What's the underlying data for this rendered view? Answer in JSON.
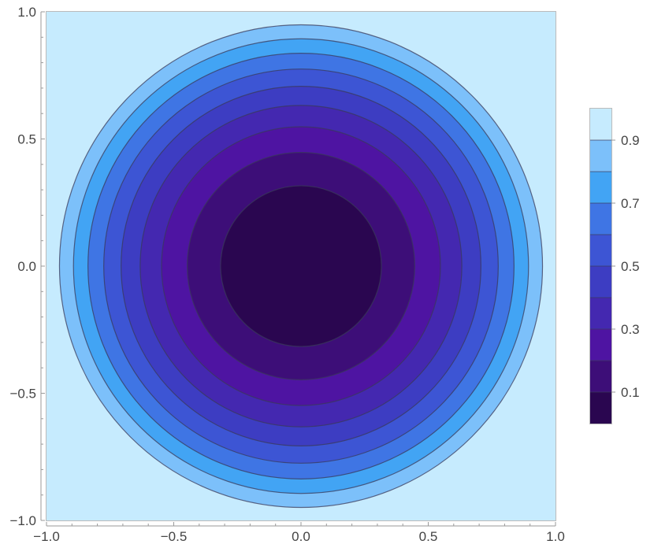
{
  "chart_data": {
    "type": "contour",
    "xlim": [
      -1.0,
      1.0
    ],
    "ylim": [
      -1.0,
      1.0
    ],
    "x_ticks": [
      -1.0,
      -0.5,
      0.0,
      0.5,
      1.0
    ],
    "y_ticks": [
      -1.0,
      -0.5,
      0.0,
      0.5,
      1.0
    ],
    "x_tick_labels": [
      "−1.0",
      "−0.5",
      "0.0",
      "0.5",
      "1.0"
    ],
    "y_tick_labels": [
      "−1.0",
      "−0.5",
      "0.0",
      "0.5",
      "1.0"
    ],
    "contour_levels": [
      0.1,
      0.2,
      0.3,
      0.4,
      0.5,
      0.6,
      0.7,
      0.8,
      0.9
    ],
    "contour_radii": [
      0.316,
      0.447,
      0.548,
      0.632,
      0.707,
      0.775,
      0.837,
      0.894,
      0.949
    ],
    "band_colors": [
      "#2a0650",
      "#3d0e78",
      "#4e14a2",
      "#4428b0",
      "#3d3dc2",
      "#3d55d4",
      "#3f75e4",
      "#42a4f4",
      "#7cc0fa",
      "#c6ebfe"
    ],
    "legend": {
      "placement": "right",
      "range": [
        0.0,
        1.0
      ],
      "ticks": [
        0.1,
        0.3,
        0.5,
        0.7,
        0.9
      ],
      "tick_labels": [
        "0.1",
        "0.3",
        "0.5",
        "0.7",
        "0.9"
      ]
    },
    "title": "",
    "xlabel": "",
    "ylabel": ""
  }
}
